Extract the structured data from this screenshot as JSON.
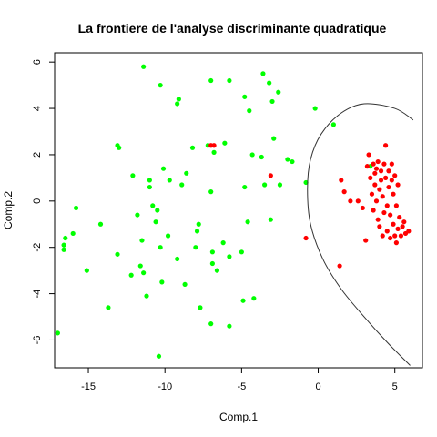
{
  "chart_data": {
    "type": "scatter",
    "title": "La frontiere de l'analyse discriminante quadratique",
    "xlabel": "Comp.1",
    "ylabel": "Comp.2",
    "xlim": [
      -17.2,
      6.8
    ],
    "ylim": [
      -7.2,
      6.4
    ],
    "x_ticks": [
      -15,
      -10,
      -5,
      0,
      5
    ],
    "x_tick_labels": [
      "-15",
      "-10",
      "-5",
      "0",
      "5"
    ],
    "y_ticks": [
      -6,
      -4,
      -2,
      0,
      2,
      4,
      6
    ],
    "y_tick_labels": [
      "-6",
      "-4",
      "-2",
      "0",
      "2",
      "4",
      "6"
    ],
    "grid": false,
    "legend": "none",
    "colors": {
      "green": "#00ff00",
      "red": "#ff0000",
      "boundary": "#333333"
    },
    "series": [
      {
        "color": "green",
        "points": [
          [
            -11.4,
            5.8
          ],
          [
            -7.0,
            5.2
          ],
          [
            -5.8,
            5.2
          ],
          [
            -3.6,
            5.5
          ],
          [
            -3.2,
            5.1
          ],
          [
            -10.3,
            5.0
          ],
          [
            -9.1,
            4.4
          ],
          [
            -9.2,
            4.2
          ],
          [
            -4.8,
            4.5
          ],
          [
            -2.6,
            4.7
          ],
          [
            -4.5,
            3.9
          ],
          [
            -3.0,
            4.3
          ],
          [
            -0.2,
            4.0
          ],
          [
            1.0,
            3.3
          ],
          [
            -13.1,
            2.4
          ],
          [
            -13.0,
            2.3
          ],
          [
            -8.2,
            2.3
          ],
          [
            -6.1,
            2.5
          ],
          [
            -7.2,
            2.4
          ],
          [
            -6.8,
            2.1
          ],
          [
            -2.9,
            2.7
          ],
          [
            -4.3,
            2.0
          ],
          [
            -3.7,
            1.9
          ],
          [
            -2.0,
            1.8
          ],
          [
            -1.7,
            1.7
          ],
          [
            -10.1,
            1.4
          ],
          [
            -8.6,
            1.2
          ],
          [
            -12.1,
            1.1
          ],
          [
            -9.7,
            0.9
          ],
          [
            -11.0,
            0.9
          ],
          [
            -8.9,
            0.7
          ],
          [
            -11.0,
            0.6
          ],
          [
            -4.8,
            0.6
          ],
          [
            -3.5,
            0.7
          ],
          [
            -2.5,
            0.7
          ],
          [
            -0.8,
            0.8
          ],
          [
            -7.0,
            0.4
          ],
          [
            -10.8,
            -0.2
          ],
          [
            -10.5,
            -0.4
          ],
          [
            -11.8,
            -0.6
          ],
          [
            -15.8,
            -0.3
          ],
          [
            -4.6,
            -0.9
          ],
          [
            -3.1,
            -0.8
          ],
          [
            -10.6,
            -0.9
          ],
          [
            -7.8,
            -1.0
          ],
          [
            -14.2,
            -1.0
          ],
          [
            -7.9,
            -1.3
          ],
          [
            -16.5,
            -1.6
          ],
          [
            -16.0,
            -1.4
          ],
          [
            -9.8,
            -1.5
          ],
          [
            -11.5,
            -1.7
          ],
          [
            -6.2,
            -1.8
          ],
          [
            -16.6,
            -1.9
          ],
          [
            -16.6,
            -2.1
          ],
          [
            -8.0,
            -2.0
          ],
          [
            -13.1,
            -2.3
          ],
          [
            -10.3,
            -2.0
          ],
          [
            -6.9,
            -2.2
          ],
          [
            -5.0,
            -2.2
          ],
          [
            -9.2,
            -2.5
          ],
          [
            -6.9,
            -2.7
          ],
          [
            -5.8,
            -2.4
          ],
          [
            -11.6,
            -2.8
          ],
          [
            -12.2,
            -3.2
          ],
          [
            -11.4,
            -3.1
          ],
          [
            -6.6,
            -3.0
          ],
          [
            -15.1,
            -3.0
          ],
          [
            -10.2,
            -3.5
          ],
          [
            -8.7,
            -3.6
          ],
          [
            -11.2,
            -4.1
          ],
          [
            -4.2,
            -4.2
          ],
          [
            -4.9,
            -4.3
          ],
          [
            -13.7,
            -4.6
          ],
          [
            -7.7,
            -4.6
          ],
          [
            -7.0,
            -5.3
          ],
          [
            -5.8,
            -5.4
          ],
          [
            -17.0,
            -5.7
          ],
          [
            -10.4,
            -6.7
          ],
          [
            3.4,
            1.5
          ]
        ]
      },
      {
        "color": "red",
        "points": [
          [
            -7.0,
            2.4
          ],
          [
            -6.8,
            2.4
          ],
          [
            -3.1,
            1.1
          ],
          [
            -0.8,
            -1.6
          ],
          [
            1.4,
            -2.8
          ],
          [
            1.5,
            0.9
          ],
          [
            1.7,
            0.4
          ],
          [
            2.1,
            0.0
          ],
          [
            2.6,
            0.0
          ],
          [
            2.9,
            -0.3
          ],
          [
            3.1,
            -1.7
          ],
          [
            3.2,
            1.5
          ],
          [
            3.3,
            2.0
          ],
          [
            3.4,
            1.0
          ],
          [
            3.5,
            0.3
          ],
          [
            3.6,
            -0.4
          ],
          [
            3.6,
            1.6
          ],
          [
            3.7,
            1.2
          ],
          [
            3.7,
            0.7
          ],
          [
            3.8,
            1.4
          ],
          [
            3.8,
            0.0
          ],
          [
            3.9,
            -0.8
          ],
          [
            3.9,
            1.7
          ],
          [
            4.0,
            0.5
          ],
          [
            4.0,
            -1.1
          ],
          [
            4.1,
            1.3
          ],
          [
            4.1,
            0.9
          ],
          [
            4.2,
            0.2
          ],
          [
            4.2,
            -1.5
          ],
          [
            4.3,
            1.6
          ],
          [
            4.3,
            -0.5
          ],
          [
            4.4,
            1.0
          ],
          [
            4.4,
            2.4
          ],
          [
            4.5,
            -0.2
          ],
          [
            4.5,
            -1.3
          ],
          [
            4.6,
            0.6
          ],
          [
            4.6,
            1.3
          ],
          [
            4.7,
            -0.6
          ],
          [
            4.7,
            -1.6
          ],
          [
            4.8,
            0.9
          ],
          [
            4.8,
            1.6
          ],
          [
            4.9,
            -1.0
          ],
          [
            4.9,
            0.3
          ],
          [
            5.0,
            -1.5
          ],
          [
            5.0,
            1.1
          ],
          [
            5.1,
            -0.2
          ],
          [
            5.1,
            -1.8
          ],
          [
            5.2,
            0.7
          ],
          [
            5.2,
            -1.2
          ],
          [
            5.3,
            -0.7
          ],
          [
            5.4,
            -1.5
          ],
          [
            5.5,
            -1.1
          ],
          [
            5.6,
            -0.9
          ],
          [
            5.7,
            -1.4
          ],
          [
            5.9,
            -1.3
          ]
        ]
      }
    ],
    "boundary_curve": [
      [
        6.2,
        3.5
      ],
      [
        5.0,
        4.0
      ],
      [
        3.0,
        4.2
      ],
      [
        1.5,
        3.8
      ],
      [
        0.2,
        2.9
      ],
      [
        -0.5,
        1.8
      ],
      [
        -0.7,
        0.5
      ],
      [
        -0.5,
        -1.0
      ],
      [
        0.3,
        -2.5
      ],
      [
        1.5,
        -3.8
      ],
      [
        3.0,
        -5.0
      ],
      [
        4.5,
        -6.1
      ],
      [
        6.0,
        -7.1
      ]
    ]
  }
}
